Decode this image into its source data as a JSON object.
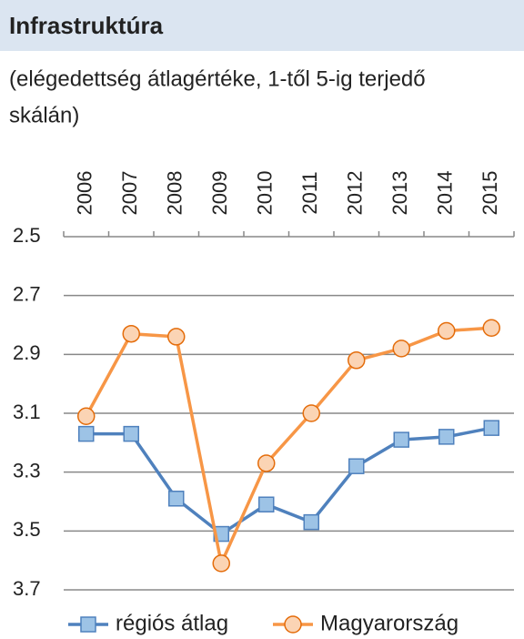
{
  "chart_data": {
    "type": "line",
    "title": "Infrastruktúra",
    "subtitle": [
      "(elégedettség átlagértéke, 1-től 5-ig terjedő",
      "skálán)"
    ],
    "categories": [
      "2006",
      "2007",
      "2008",
      "2009",
      "2010",
      "2011",
      "2012",
      "2013",
      "2014",
      "2015"
    ],
    "series": [
      {
        "name": "régiós átlag",
        "color": "#4f81bd",
        "marker": "square",
        "values": [
          3.17,
          3.17,
          3.39,
          3.51,
          3.41,
          3.47,
          3.28,
          3.19,
          3.18,
          3.15
        ]
      },
      {
        "name": "Magyarország",
        "color": "#f79646",
        "marker": "circle",
        "values": [
          3.11,
          2.83,
          2.84,
          3.61,
          3.27,
          3.1,
          2.92,
          2.88,
          2.82,
          2.81
        ]
      }
    ],
    "ylim": [
      2.5,
      3.7
    ],
    "yticks": [
      2.5,
      2.7,
      2.9,
      3.1,
      3.3,
      3.5,
      3.7
    ],
    "y_inverted": true,
    "grid": true,
    "legend": "bottom"
  }
}
